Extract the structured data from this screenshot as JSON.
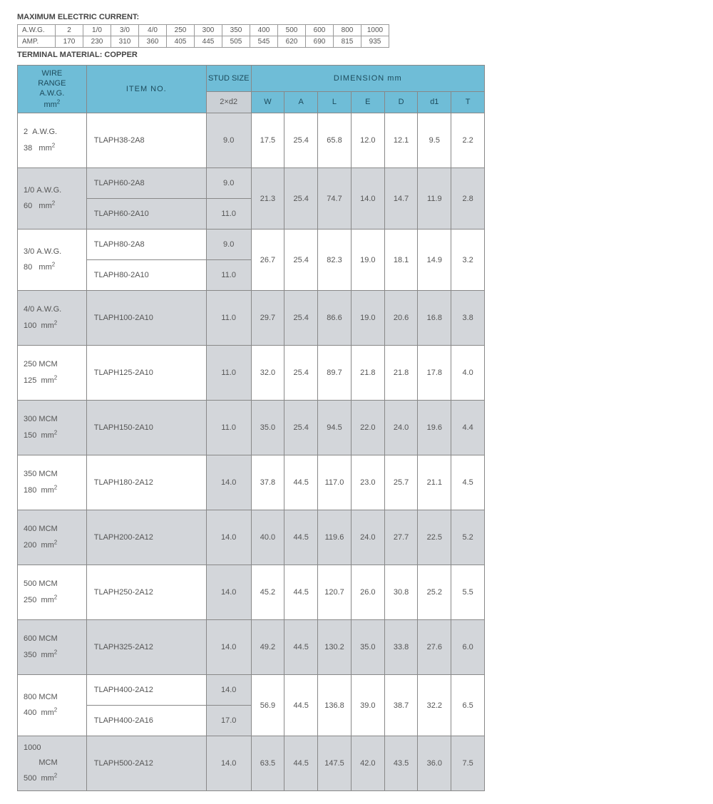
{
  "colors": {
    "header_blue": "#6fbdd7",
    "shade_grey": "#d3d6da",
    "border": "#888888",
    "text": "#555555",
    "bg": "#ffffff"
  },
  "titles": {
    "max_current": "MAXIMUM ELECTRIC CURRENT:",
    "terminal_material": "TERMINAL MATERIAL: COPPER"
  },
  "max_current_table": {
    "row_labels": [
      "A.W.G.",
      "AMP."
    ],
    "awg": [
      "2",
      "1/0",
      "3/0",
      "4/0",
      "250",
      "300",
      "350",
      "400",
      "500",
      "600",
      "800",
      "1000"
    ],
    "amp": [
      "170",
      "230",
      "310",
      "360",
      "405",
      "445",
      "505",
      "545",
      "620",
      "690",
      "815",
      "935"
    ]
  },
  "main_header": {
    "wire_range": "WIRE\nRANGE\nA.W.G.\nmm²",
    "item_no": "ITEM NO.",
    "stud_size": "STUD SIZE",
    "stud_sub": "2×d2",
    "dimension_title": "DIMENSION mm",
    "dim_cols": [
      "W",
      "A",
      "L",
      "E",
      "D",
      "d1",
      "T"
    ]
  },
  "groups": [
    {
      "shade": false,
      "wire_awg": "2  A.W.G.",
      "wire_mm2": "38   mm²",
      "variants": [
        {
          "item": "TLAPH38-2A8",
          "stud": "9.0"
        }
      ],
      "dims": [
        "17.5",
        "25.4",
        "65.8",
        "12.0",
        "12.1",
        "9.5",
        "2.2"
      ]
    },
    {
      "shade": true,
      "wire_awg": "1/0 A.W.G.",
      "wire_mm2": "60   mm²",
      "variants": [
        {
          "item": "TLAPH60-2A8",
          "stud": "9.0"
        },
        {
          "item": "TLAPH60-2A10",
          "stud": "11.0"
        }
      ],
      "dims": [
        "21.3",
        "25.4",
        "74.7",
        "14.0",
        "14.7",
        "11.9",
        "2.8"
      ]
    },
    {
      "shade": false,
      "wire_awg": "3/0 A.W.G.",
      "wire_mm2": "80   mm²",
      "variants": [
        {
          "item": "TLAPH80-2A8",
          "stud": "9.0"
        },
        {
          "item": "TLAPH80-2A10",
          "stud": "11.0"
        }
      ],
      "dims": [
        "26.7",
        "25.4",
        "82.3",
        "19.0",
        "18.1",
        "14.9",
        "3.2"
      ]
    },
    {
      "shade": true,
      "wire_awg": "4/0 A.W.G.",
      "wire_mm2": "100  mm²",
      "variants": [
        {
          "item": "TLAPH100-2A10",
          "stud": "11.0"
        }
      ],
      "dims": [
        "29.7",
        "25.4",
        "86.6",
        "19.0",
        "20.6",
        "16.8",
        "3.8"
      ]
    },
    {
      "shade": false,
      "wire_awg": "250 MCM",
      "wire_mm2": "125  mm²",
      "variants": [
        {
          "item": "TLAPH125-2A10",
          "stud": "11.0"
        }
      ],
      "dims": [
        "32.0",
        "25.4",
        "89.7",
        "21.8",
        "21.8",
        "17.8",
        "4.0"
      ]
    },
    {
      "shade": true,
      "wire_awg": "300 MCM",
      "wire_mm2": "150  mm²",
      "variants": [
        {
          "item": "TLAPH150-2A10",
          "stud": "11.0"
        }
      ],
      "dims": [
        "35.0",
        "25.4",
        "94.5",
        "22.0",
        "24.0",
        "19.6",
        "4.4"
      ]
    },
    {
      "shade": false,
      "wire_awg": "350 MCM",
      "wire_mm2": "180  mm²",
      "variants": [
        {
          "item": "TLAPH180-2A12",
          "stud": "14.0"
        }
      ],
      "dims": [
        "37.8",
        "44.5",
        "117.0",
        "23.0",
        "25.7",
        "21.1",
        "4.5"
      ]
    },
    {
      "shade": true,
      "wire_awg": "400 MCM",
      "wire_mm2": "200  mm²",
      "variants": [
        {
          "item": "TLAPH200-2A12",
          "stud": "14.0"
        }
      ],
      "dims": [
        "40.0",
        "44.5",
        "119.6",
        "24.0",
        "27.7",
        "22.5",
        "5.2"
      ]
    },
    {
      "shade": false,
      "wire_awg": "500 MCM",
      "wire_mm2": "250  mm²",
      "variants": [
        {
          "item": "TLAPH250-2A12",
          "stud": "14.0"
        }
      ],
      "dims": [
        "45.2",
        "44.5",
        "120.7",
        "26.0",
        "30.8",
        "25.2",
        "5.5"
      ]
    },
    {
      "shade": true,
      "wire_awg": "600 MCM",
      "wire_mm2": "350  mm²",
      "variants": [
        {
          "item": "TLAPH325-2A12",
          "stud": "14.0"
        }
      ],
      "dims": [
        "49.2",
        "44.5",
        "130.2",
        "35.0",
        "33.8",
        "27.6",
        "6.0"
      ]
    },
    {
      "shade": false,
      "wire_awg": "800 MCM",
      "wire_mm2": "400  mm²",
      "variants": [
        {
          "item": "TLAPH400-2A12",
          "stud": "14.0"
        },
        {
          "item": "TLAPH400-2A16",
          "stud": "17.0"
        }
      ],
      "dims": [
        "56.9",
        "44.5",
        "136.8",
        "39.0",
        "38.7",
        "32.2",
        "6.5"
      ]
    },
    {
      "shade": true,
      "wire_awg": "1000\n       MCM",
      "wire_mm2": "500  mm²",
      "variants": [
        {
          "item": "TLAPH500-2A12",
          "stud": "14.0"
        }
      ],
      "dims": [
        "63.5",
        "44.5",
        "147.5",
        "42.0",
        "43.5",
        "36.0",
        "7.5"
      ]
    }
  ]
}
